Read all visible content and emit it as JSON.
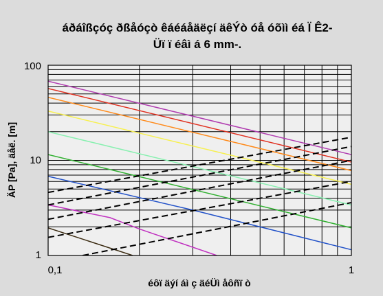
{
  "chart_data": {
    "type": "line",
    "title": "áðáîßçóç ðßåóçò êáéáåäëçí äêÝò óå óõìì éá Ï Ê2-",
    "subtitle": "Üï ï éâì á 6 mm-.",
    "xlabel": "éôï äýí áì ç äéÜì åôñï ò",
    "ylabel": "ÄP [Pa], äåë. [m]",
    "x_scale": "log",
    "y_scale": "log",
    "xlim": [
      0.1,
      1
    ],
    "ylim": [
      1,
      100
    ],
    "x_ticks": [
      "0,1",
      "1"
    ],
    "y_ticks": [
      "1",
      "10",
      "100"
    ],
    "grid": true,
    "legend": "none",
    "series": [
      {
        "color": "#b03cb0",
        "style": "solid",
        "points": [
          [
            0.1,
            68
          ],
          [
            1,
            11.5
          ]
        ]
      },
      {
        "color": "#e03020",
        "style": "solid",
        "points": [
          [
            0.1,
            57
          ],
          [
            1,
            9.6
          ]
        ]
      },
      {
        "color": "#ff8a1a",
        "style": "solid",
        "points": [
          [
            0.1,
            46
          ],
          [
            1,
            7.8
          ]
        ]
      },
      {
        "color": "#f7f050",
        "style": "solid",
        "points": [
          [
            0.1,
            33
          ],
          [
            1,
            5.6
          ]
        ]
      },
      {
        "color": "#88f0b0",
        "style": "solid",
        "points": [
          [
            0.1,
            20
          ],
          [
            1,
            3.4
          ]
        ]
      },
      {
        "color": "#30b030",
        "style": "solid",
        "points": [
          [
            0.1,
            11.5
          ],
          [
            1,
            1.95
          ]
        ]
      },
      {
        "color": "#2050c8",
        "style": "solid",
        "points": [
          [
            0.1,
            6.8
          ],
          [
            0.3,
            3.0
          ],
          [
            1,
            1.15
          ]
        ]
      },
      {
        "color": "#c030c0",
        "style": "solid",
        "points": [
          [
            0.1,
            3.4
          ],
          [
            0.16,
            2.5
          ],
          [
            0.2,
            1.9
          ],
          [
            0.36,
            1.0
          ]
        ]
      },
      {
        "color": "#3a2a10",
        "style": "solid",
        "points": [
          [
            0.1,
            1.95
          ],
          [
            0.19,
            1.0
          ]
        ]
      },
      {
        "color": "#000000",
        "style": "dashed",
        "points": [
          [
            0.1,
            4.6
          ],
          [
            1,
            17.5
          ]
        ]
      },
      {
        "color": "#000000",
        "style": "dashed",
        "points": [
          [
            0.1,
            3.4
          ],
          [
            1,
            14.0
          ]
        ]
      },
      {
        "color": "#000000",
        "style": "dashed",
        "points": [
          [
            0.1,
            2.4
          ],
          [
            1,
            10.0
          ]
        ]
      },
      {
        "color": "#000000",
        "style": "dashed",
        "points": [
          [
            0.1,
            1.55
          ],
          [
            1,
            6.0
          ]
        ]
      },
      {
        "color": "#000000",
        "style": "dashed",
        "points": [
          [
            0.13,
            1.0
          ],
          [
            1,
            3.6
          ]
        ]
      }
    ]
  }
}
